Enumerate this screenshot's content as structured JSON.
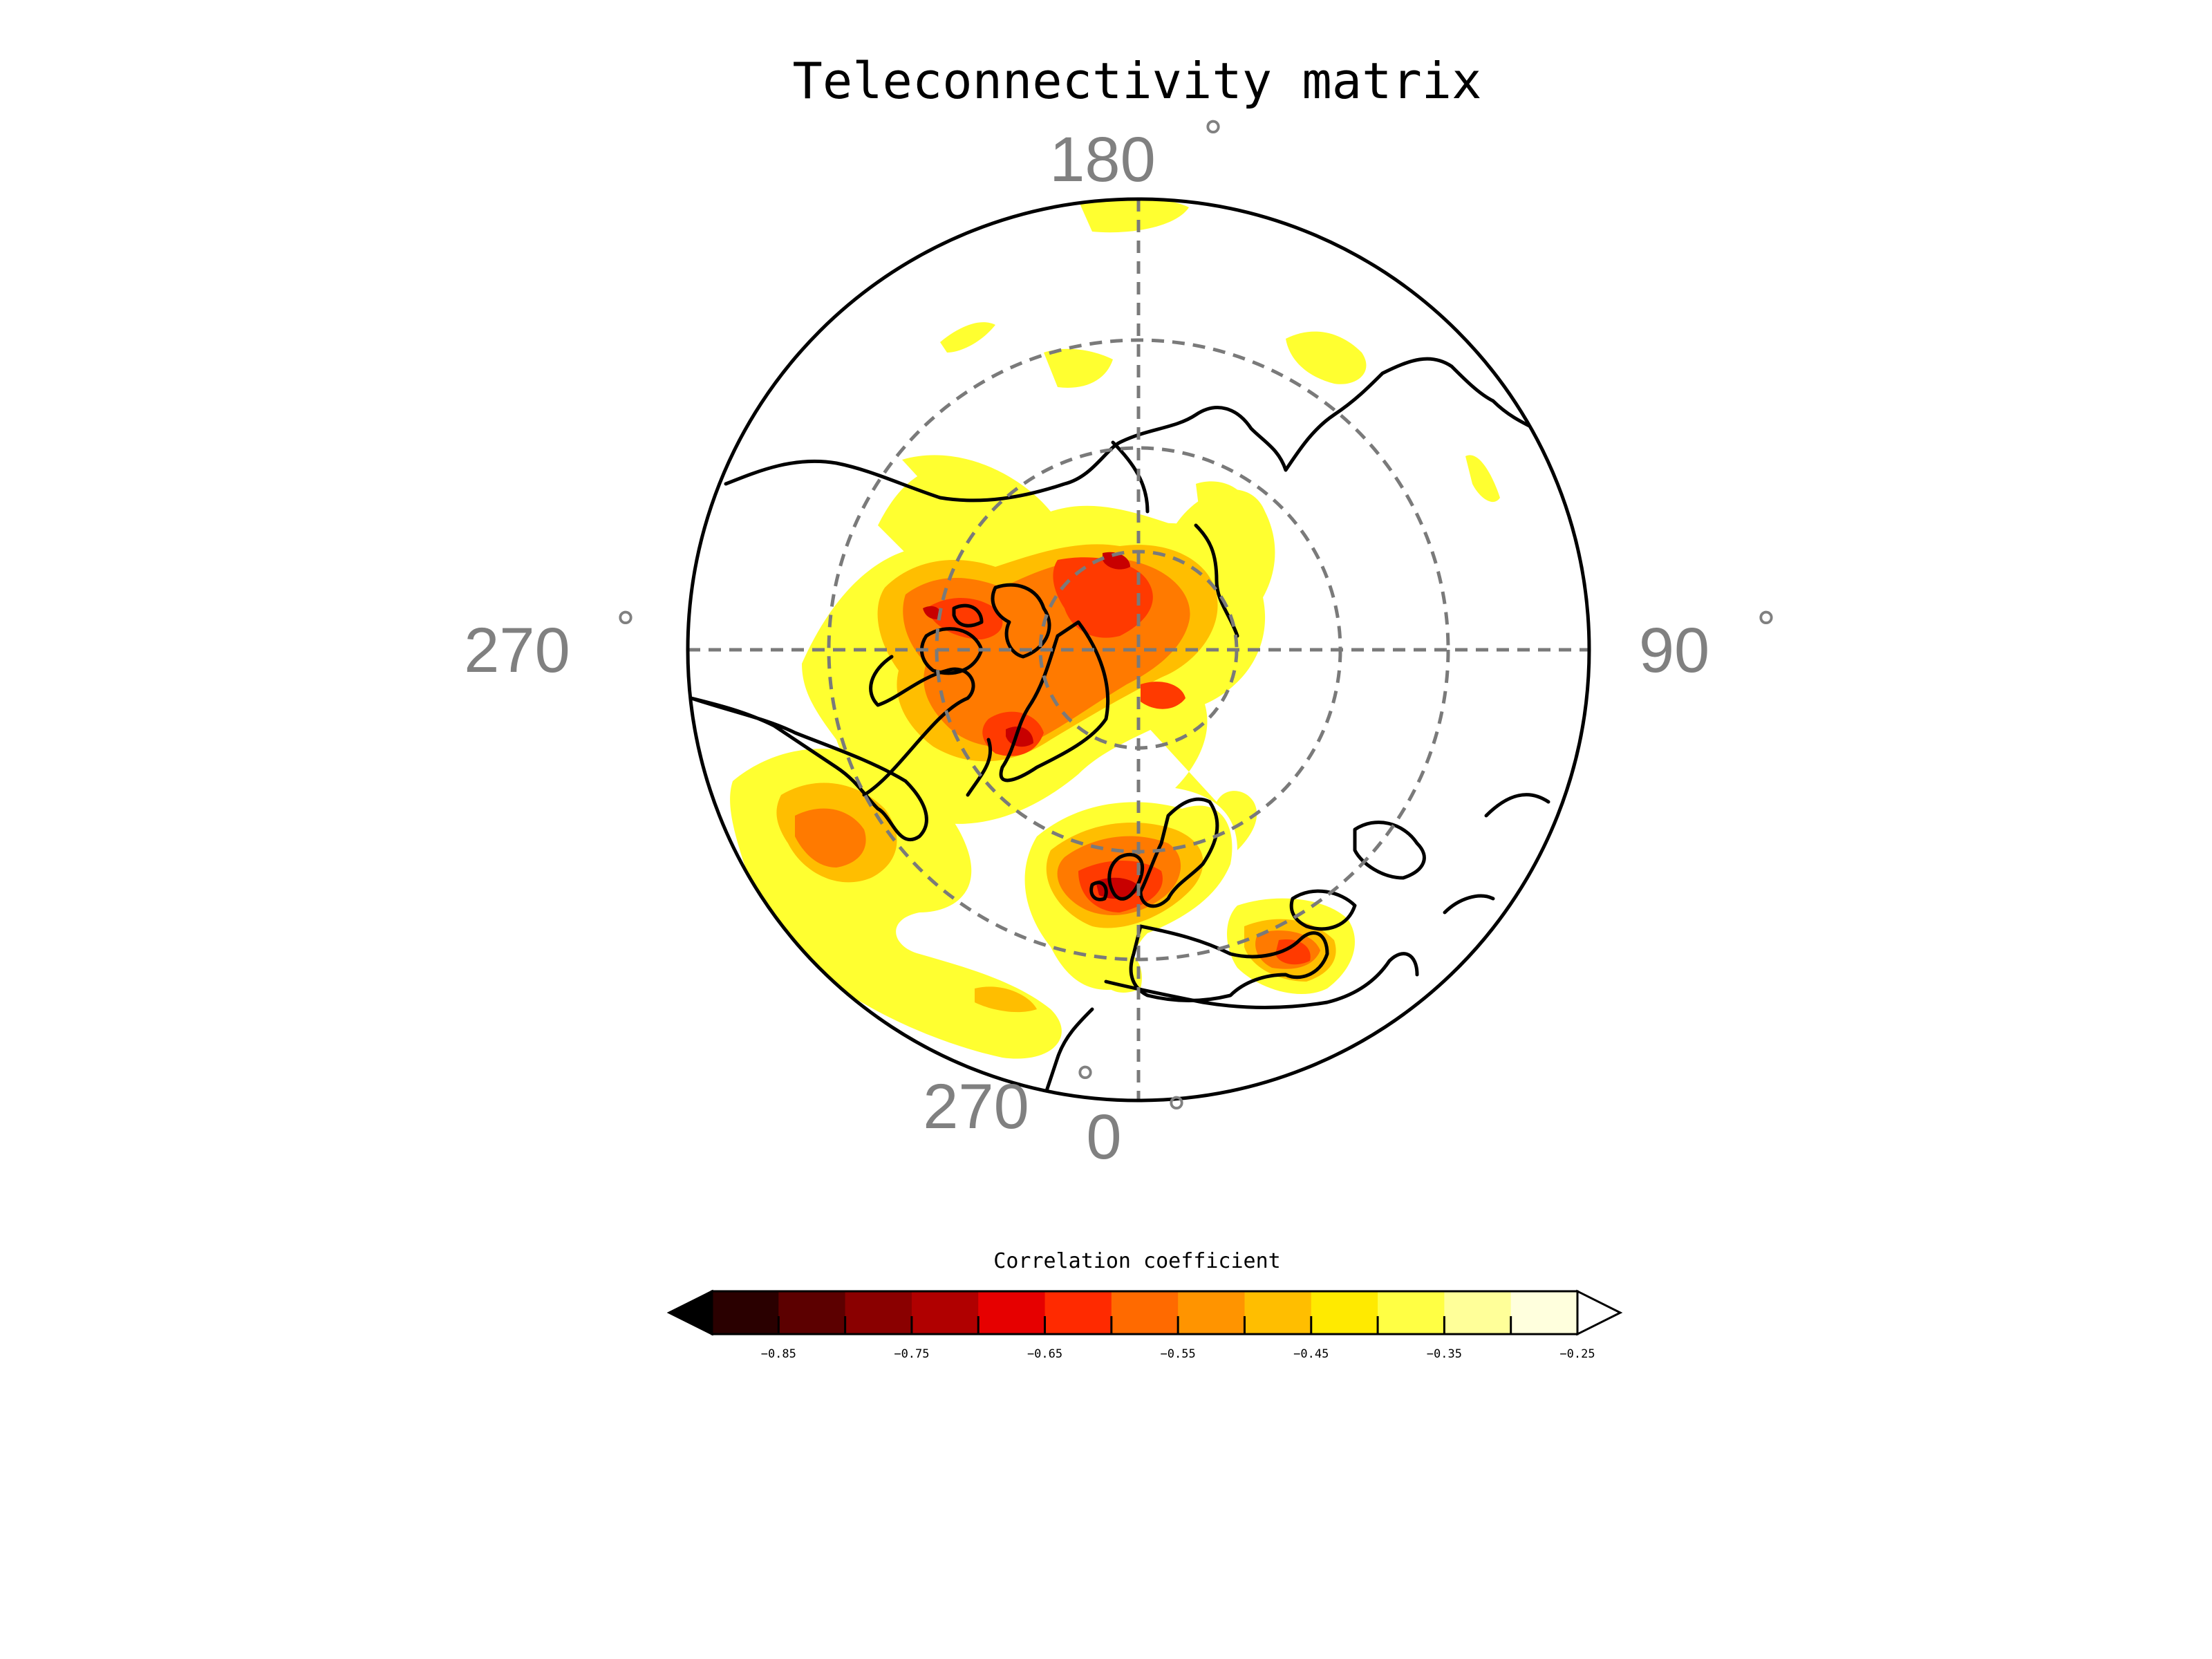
{
  "title": "Teleconnectivity matrix",
  "longitude_labels": {
    "top": "180",
    "left": "270",
    "right": "90",
    "bottom": "0",
    "bottom_extra": "270",
    "degree_symbol": "°"
  },
  "colorbar": {
    "title": "Correlation coefficient",
    "tick_labels": [
      "−0.85",
      "−0.75",
      "−0.65",
      "−0.55",
      "−0.45",
      "−0.35",
      "−0.25"
    ],
    "levels": [
      -0.9,
      -0.85,
      -0.8,
      -0.75,
      -0.7,
      -0.65,
      -0.6,
      -0.55,
      -0.5,
      -0.45,
      -0.4,
      -0.35,
      -0.3,
      -0.25
    ],
    "colors": [
      "#2a0000",
      "#5c0000",
      "#8a0000",
      "#b00000",
      "#e60000",
      "#ff2a00",
      "#ff6a00",
      "#ff9400",
      "#ffbe00",
      "#ffea00",
      "#ffff44",
      "#ffff99",
      "#ffffdd"
    ],
    "extend": "both",
    "under_color": "#000000",
    "over_color": "#ffffff"
  },
  "map": {
    "projection": "north-polar-stereographic",
    "colors": {
      "coastline": "#000000",
      "gridline": "#7a7a7a",
      "boundary": "#000000"
    }
  }
}
